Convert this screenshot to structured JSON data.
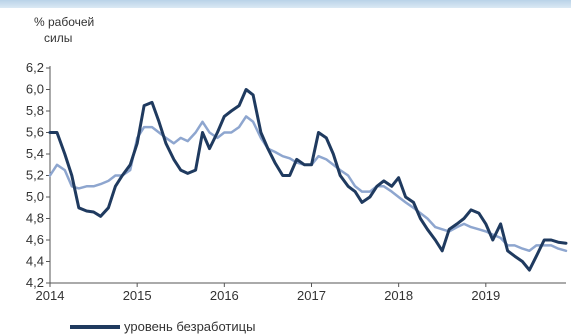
{
  "chart_data": {
    "type": "line",
    "ylabel_lines": [
      "% рабочей",
      "силы"
    ],
    "ylim": [
      4.2,
      6.2
    ],
    "yticks": [
      "6,2",
      "6,0",
      "5,8",
      "5,6",
      "5,4",
      "5,2",
      "5,0",
      "4,8",
      "4,6",
      "4,4",
      "4,2"
    ],
    "xlim": [
      2014.0,
      2019.92
    ],
    "xticks": [
      {
        "value": 2014,
        "label": "2014"
      },
      {
        "value": 2015,
        "label": "2015"
      },
      {
        "value": 2016,
        "label": "2016"
      },
      {
        "value": 2017,
        "label": "2017"
      },
      {
        "value": 2018,
        "label": "2018"
      },
      {
        "value": 2019,
        "label": "2019"
      }
    ],
    "grid": false,
    "series": [
      {
        "name": "уровень безработицы",
        "color": "#1f3a5f",
        "x": [
          2014.0,
          2014.08,
          2014.17,
          2014.25,
          2014.33,
          2014.42,
          2014.5,
          2014.58,
          2014.67,
          2014.75,
          2014.83,
          2014.92,
          2015.0,
          2015.08,
          2015.17,
          2015.25,
          2015.33,
          2015.42,
          2015.5,
          2015.58,
          2015.67,
          2015.75,
          2015.83,
          2015.92,
          2016.0,
          2016.08,
          2016.17,
          2016.25,
          2016.33,
          2016.42,
          2016.5,
          2016.58,
          2016.67,
          2016.75,
          2016.83,
          2016.92,
          2017.0,
          2017.08,
          2017.17,
          2017.25,
          2017.33,
          2017.42,
          2017.5,
          2017.58,
          2017.67,
          2017.75,
          2017.83,
          2017.92,
          2018.0,
          2018.08,
          2018.17,
          2018.25,
          2018.33,
          2018.42,
          2018.5,
          2018.58,
          2018.67,
          2018.75,
          2018.83,
          2018.92,
          2019.0,
          2019.08,
          2019.17,
          2019.25,
          2019.33,
          2019.42,
          2019.5,
          2019.58,
          2019.67,
          2019.75,
          2019.83,
          2019.92
        ],
        "y": [
          5.6,
          5.6,
          5.4,
          5.2,
          4.9,
          4.87,
          4.86,
          4.82,
          4.9,
          5.1,
          5.2,
          5.3,
          5.5,
          5.85,
          5.88,
          5.7,
          5.5,
          5.35,
          5.25,
          5.22,
          5.25,
          5.6,
          5.45,
          5.6,
          5.75,
          5.8,
          5.85,
          6.0,
          5.95,
          5.6,
          5.45,
          5.32,
          5.2,
          5.2,
          5.35,
          5.3,
          5.3,
          5.6,
          5.55,
          5.4,
          5.2,
          5.1,
          5.05,
          4.95,
          5.0,
          5.1,
          5.15,
          5.1,
          5.18,
          5.0,
          4.95,
          4.8,
          4.7,
          4.6,
          4.5,
          4.7,
          4.75,
          4.8,
          4.88,
          4.85,
          4.75,
          4.6,
          4.75,
          4.5,
          4.45,
          4.4,
          4.32,
          4.45,
          4.6,
          4.6,
          4.58,
          4.57
        ]
      },
      {
        "name": "",
        "color": "#8ea6cf",
        "x": [
          2014.0,
          2014.08,
          2014.17,
          2014.25,
          2014.33,
          2014.42,
          2014.5,
          2014.58,
          2014.67,
          2014.75,
          2014.83,
          2014.92,
          2015.0,
          2015.08,
          2015.17,
          2015.25,
          2015.33,
          2015.42,
          2015.5,
          2015.58,
          2015.67,
          2015.75,
          2015.83,
          2015.92,
          2016.0,
          2016.08,
          2016.17,
          2016.25,
          2016.33,
          2016.42,
          2016.5,
          2016.58,
          2016.67,
          2016.75,
          2016.83,
          2016.92,
          2017.0,
          2017.08,
          2017.17,
          2017.25,
          2017.33,
          2017.42,
          2017.5,
          2017.58,
          2017.67,
          2017.75,
          2017.83,
          2017.92,
          2018.0,
          2018.08,
          2018.17,
          2018.25,
          2018.33,
          2018.42,
          2018.5,
          2018.58,
          2018.67,
          2018.75,
          2018.83,
          2018.92,
          2019.0,
          2019.08,
          2019.17,
          2019.25,
          2019.33,
          2019.42,
          2019.5,
          2019.58,
          2019.67,
          2019.75,
          2019.83,
          2019.92
        ],
        "y": [
          5.2,
          5.3,
          5.25,
          5.1,
          5.08,
          5.1,
          5.1,
          5.12,
          5.15,
          5.2,
          5.2,
          5.25,
          5.55,
          5.65,
          5.65,
          5.6,
          5.55,
          5.5,
          5.55,
          5.52,
          5.6,
          5.7,
          5.6,
          5.55,
          5.6,
          5.6,
          5.65,
          5.75,
          5.7,
          5.55,
          5.45,
          5.42,
          5.38,
          5.36,
          5.32,
          5.3,
          5.3,
          5.38,
          5.35,
          5.3,
          5.25,
          5.2,
          5.1,
          5.05,
          5.05,
          5.1,
          5.1,
          5.05,
          5.0,
          4.95,
          4.9,
          4.85,
          4.8,
          4.72,
          4.7,
          4.68,
          4.72,
          4.75,
          4.72,
          4.7,
          4.68,
          4.65,
          4.62,
          4.55,
          4.55,
          4.52,
          4.5,
          4.55,
          4.55,
          4.55,
          4.52,
          4.5
        ]
      }
    ]
  },
  "colors": {
    "axis": "#555555",
    "background": "#ffffff"
  }
}
